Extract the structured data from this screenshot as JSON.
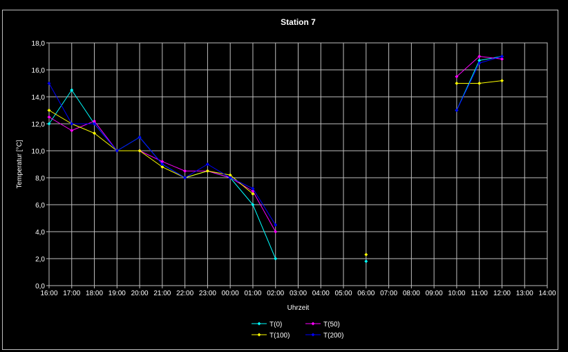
{
  "chart_data": {
    "type": "line",
    "title": "Station 7",
    "xlabel": "Uhrzeit",
    "ylabel": "Temperatur [°C]",
    "ylim": [
      0,
      18
    ],
    "ytick_step": 2,
    "ytick_labels": [
      "0,0",
      "2,0",
      "4,0",
      "6,0",
      "8,0",
      "10,0",
      "12,0",
      "14,0",
      "16,0",
      "18,0"
    ],
    "categories": [
      "16:00",
      "17:00",
      "18:00",
      "19:00",
      "20:00",
      "21:00",
      "22:00",
      "23:00",
      "00:00",
      "01:00",
      "02:00",
      "03:00",
      "04:00",
      "05:00",
      "06:00",
      "07:00",
      "08:00",
      "09:00",
      "10:00",
      "11:00",
      "12:00",
      "13:00",
      "14:00"
    ],
    "grid": true,
    "legend_position": "bottom",
    "series": [
      {
        "name": "T(0)",
        "color": "#00ffff",
        "values": [
          12.0,
          14.5,
          12.0,
          10.0,
          11.0,
          9.0,
          8.0,
          8.5,
          8.0,
          6.0,
          2.0,
          null,
          null,
          null,
          1.8,
          null,
          null,
          null,
          13.0,
          16.7,
          17.0,
          null,
          null
        ]
      },
      {
        "name": "T(50)",
        "color": "#ff00ff",
        "values": [
          12.5,
          11.5,
          12.2,
          10.0,
          10.0,
          9.2,
          8.5,
          8.5,
          8.0,
          7.0,
          4.0,
          null,
          null,
          null,
          null,
          null,
          null,
          null,
          15.5,
          17.0,
          16.8,
          null,
          null
        ]
      },
      {
        "name": "T(100)",
        "color": "#ffff00",
        "values": [
          13.0,
          12.0,
          11.3,
          10.0,
          10.0,
          8.8,
          8.0,
          8.5,
          8.2,
          6.8,
          null,
          null,
          null,
          null,
          2.3,
          null,
          null,
          null,
          15.0,
          15.0,
          15.2,
          null,
          null
        ]
      },
      {
        "name": "T(200)",
        "color": "#0000ff",
        "values": [
          15.0,
          12.0,
          12.0,
          10.0,
          11.0,
          9.0,
          8.0,
          9.0,
          8.0,
          7.2,
          4.5,
          null,
          null,
          null,
          null,
          null,
          null,
          null,
          13.0,
          16.5,
          17.0,
          null,
          null
        ]
      }
    ]
  }
}
